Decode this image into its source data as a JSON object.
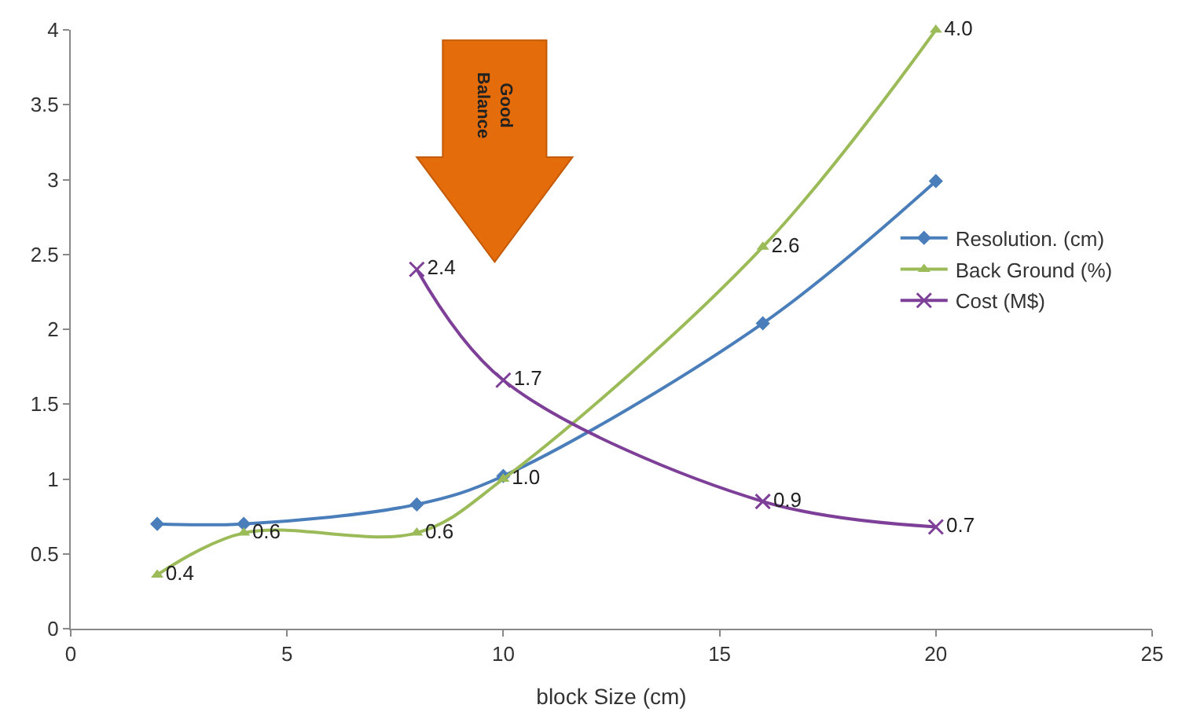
{
  "chart_data": {
    "type": "line",
    "xlabel": "block Size (cm)",
    "xlim": [
      0,
      25
    ],
    "xticks": [
      0,
      5,
      10,
      15,
      20,
      25
    ],
    "ylim": [
      0,
      4
    ],
    "yticks": [
      0,
      0.5,
      1,
      1.5,
      2,
      2.5,
      3,
      3.5,
      4
    ],
    "legend": "right",
    "line_style": "solid",
    "annotations": [
      "Good Balance"
    ],
    "series": [
      {
        "name": "Resolution. (cm)",
        "color": "#4a7ebb",
        "marker": "diamond",
        "x": [
          2,
          4,
          8,
          10,
          16,
          20
        ],
        "values": [
          0.7,
          0.7,
          0.83,
          1.02,
          2.04,
          2.99
        ]
      },
      {
        "name": "Back Ground (%)",
        "color": "#9bbb59",
        "marker": "triangle",
        "x": [
          2,
          4,
          8,
          10,
          16,
          20
        ],
        "values": [
          0.36,
          0.64,
          0.64,
          1.0,
          2.55,
          4.0
        ],
        "value_labels": [
          "0.4",
          "0.6",
          "0.6",
          "1.0",
          "2.6",
          "4.0"
        ]
      },
      {
        "name": "Cost (M$)",
        "color": "#7d3f98",
        "marker": "cross",
        "x": [
          8,
          10,
          16,
          20
        ],
        "values": [
          2.4,
          1.66,
          0.85,
          0.68
        ],
        "value_labels": [
          "2.4",
          "1.7",
          "0.9",
          "0.7"
        ]
      }
    ]
  }
}
